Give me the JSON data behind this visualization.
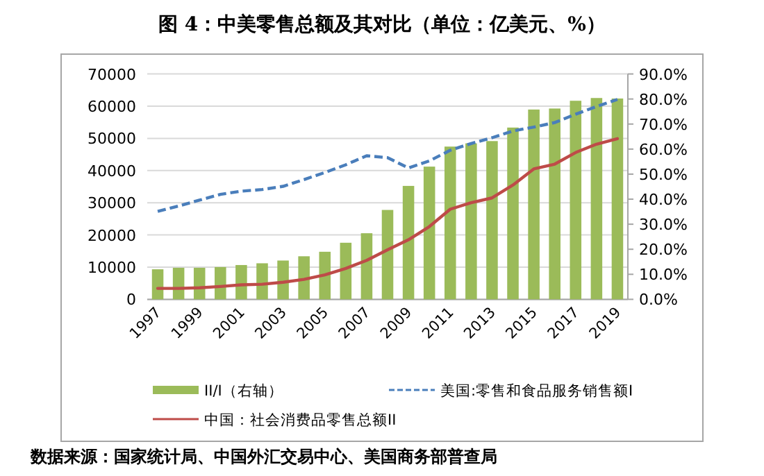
{
  "chart_data": {
    "type": "bar",
    "title": "图 4：中美零售总额及其对比（单位：亿美元、%）",
    "annotations": [
      "数据来源：国家统计局、中国外汇交易中心、美国商务部普查局"
    ],
    "categories": [
      "1997",
      null,
      "1999",
      null,
      "2001",
      null,
      "2003",
      null,
      "2005",
      null,
      "2007",
      null,
      "2009",
      null,
      "2011",
      null,
      "2013",
      null,
      "2015",
      null,
      "2017",
      null,
      "2019"
    ],
    "series": [
      {
        "name": "II/I（右轴）",
        "axis": "y2",
        "color": "#9bbb59",
        "values": [
          12.0,
          12.6,
          12.6,
          12.9,
          13.7,
          14.4,
          15.5,
          17.2,
          19.0,
          22.6,
          26.4,
          35.7,
          45.3,
          53.0,
          61.0,
          62.3,
          63.2,
          68.6,
          75.8,
          76.2,
          79.3,
          80.4,
          80.2
        ]
      },
      {
        "name": "美国:零售和食品服务销售额I",
        "type": "line",
        "line_style": "dashed",
        "color": "#4a7ebb",
        "values": [
          27300,
          29000,
          30800,
          32600,
          33600,
          34100,
          35100,
          37200,
          39400,
          41800,
          44600,
          44000,
          40800,
          43000,
          46300,
          48400,
          50200,
          52300,
          53500,
          54900,
          57500,
          59900,
          62100
        ]
      },
      {
        "name": "中国：社会消费品零售总额II",
        "type": "line",
        "line_style": "solid",
        "color": "#be4b48",
        "values": [
          3400,
          3400,
          3600,
          4000,
          4500,
          4700,
          5300,
          6200,
          7600,
          9600,
          12100,
          15400,
          18500,
          22600,
          28000,
          30000,
          31500,
          35500,
          40500,
          42000,
          45600,
          48200,
          49900
        ]
      }
    ],
    "ylim": [
      0,
      70000
    ],
    "yticks": [
      0,
      10000,
      20000,
      30000,
      40000,
      50000,
      60000,
      70000
    ],
    "y2lim": [
      0,
      90
    ],
    "y2ticks": [
      {
        "value": 0,
        "label": "0.0%"
      },
      {
        "value": 10,
        "label": "10.0%"
      },
      {
        "value": 20,
        "label": "20.0%"
      },
      {
        "value": 30,
        "label": "30.0%"
      },
      {
        "value": 40,
        "label": "40.0%"
      },
      {
        "value": 50,
        "label": "50.0%"
      },
      {
        "value": 60,
        "label": "60.0%"
      },
      {
        "value": 70,
        "label": "70.0%"
      },
      {
        "value": 80,
        "label": "80.0%"
      },
      {
        "value": 90,
        "label": "90.0%"
      }
    ],
    "grid": "y",
    "legend": "bottom"
  }
}
